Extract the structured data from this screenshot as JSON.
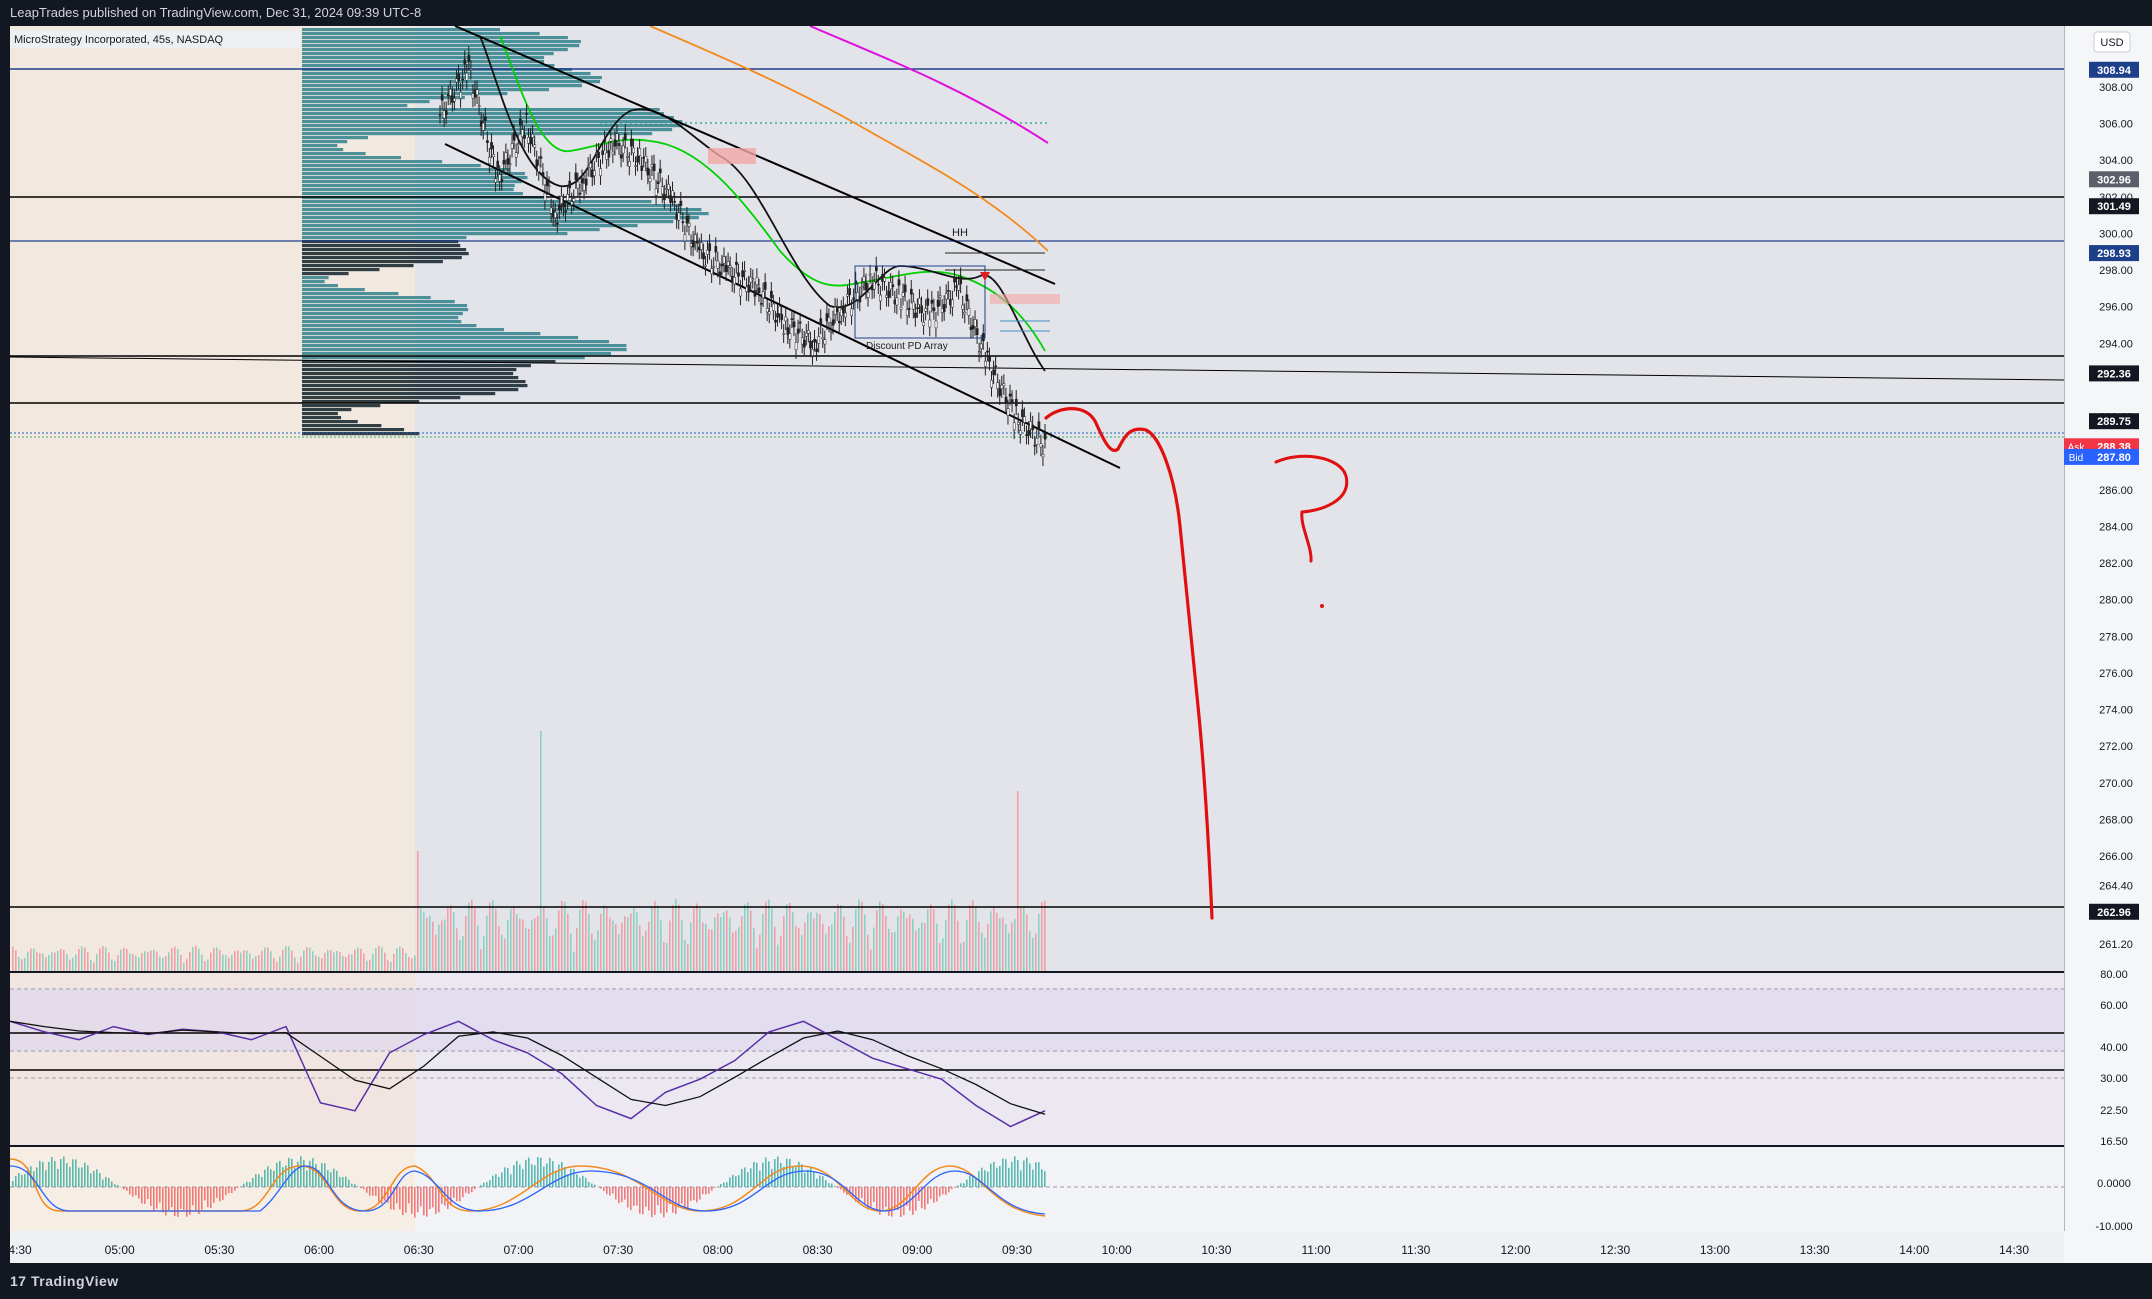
{
  "header": {
    "published_text": "LeapTrades published on TradingView.com, Dec 31, 2024 09:39 UTC-8"
  },
  "footer": {
    "brand": "TradingView",
    "logo_glyph": "17"
  },
  "chart_data": {
    "type": "line",
    "symbol": "MicroStrategy Incorporated, 45s, NASDAQ",
    "currency": "USD",
    "price_axis": {
      "ticks": [
        "308.00",
        "306.00",
        "304.00",
        "302.00",
        "300.00",
        "298.00",
        "296.00",
        "294.00",
        "290.00",
        "286.00",
        "284.00",
        "282.00",
        "280.00",
        "278.00",
        "276.00",
        "274.00",
        "272.00",
        "270.00",
        "268.00",
        "266.00",
        "264.40",
        "261.20"
      ],
      "ylim": [
        261.2,
        310
      ]
    },
    "price_labels": [
      {
        "value": "308.94",
        "style": "blue"
      },
      {
        "value": "302.96",
        "style": "gray"
      },
      {
        "value": "301.49",
        "style": "black"
      },
      {
        "value": "298.93",
        "style": "blue"
      },
      {
        "value": "292.36",
        "style": "black"
      },
      {
        "value": "289.75",
        "style": "black"
      },
      {
        "value": "288.38",
        "style": "red",
        "tag": "Ask"
      },
      {
        "value": "287.80",
        "style": "blue",
        "tag": "Bid"
      },
      {
        "value": "262.96",
        "style": "black"
      }
    ],
    "time_axis": [
      "4:30",
      "05:00",
      "05:30",
      "06:00",
      "06:30",
      "07:00",
      "07:30",
      "08:00",
      "08:30",
      "09:00",
      "09:30",
      "10:00",
      "10:30",
      "11:00",
      "11:30",
      "12:00",
      "12:30",
      "13:00",
      "13:30",
      "14:00",
      "14:30"
    ],
    "annotations": [
      "HH",
      "Discount PD Array",
      "?"
    ],
    "price_series_close": [
      306.5,
      309,
      303,
      306,
      301,
      303,
      305,
      304,
      302,
      299,
      298,
      297,
      295,
      294,
      296,
      297.5,
      296.5,
      295.5,
      297,
      293,
      290,
      288.4
    ],
    "rsi": {
      "ticks": [
        "80.00",
        "60.00",
        "40.00",
        "30.00",
        "22.50",
        "16.50"
      ],
      "ylim": [
        16.5,
        80
      ],
      "values": [
        62,
        58,
        55,
        60,
        57,
        59,
        58,
        55,
        60,
        31,
        28,
        50,
        57,
        62,
        55,
        50,
        42,
        30,
        25,
        35,
        40,
        47,
        58,
        62,
        55,
        48,
        44,
        40,
        30,
        22,
        28
      ]
    },
    "oscillator": {
      "ticks": [
        "0.0000",
        "-10.000"
      ]
    }
  }
}
